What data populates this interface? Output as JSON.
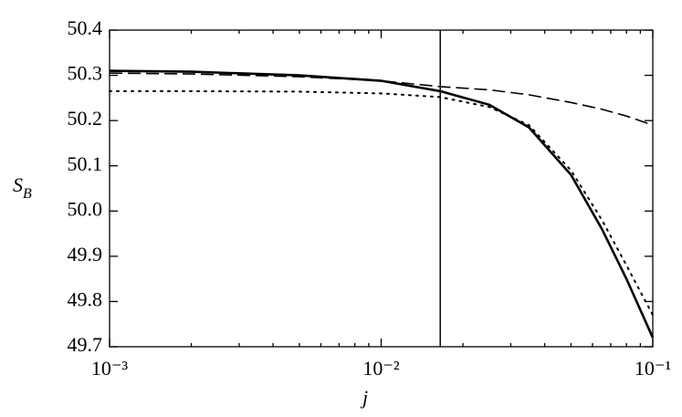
{
  "chart_data": {
    "type": "line",
    "xlabel": "j",
    "ylabel": "S",
    "ylabel_subscript": "B",
    "xscale": "log",
    "xlim": [
      0.001,
      0.1
    ],
    "xticks": [
      {
        "value": 0.001,
        "label": "10⁻³"
      },
      {
        "value": 0.01,
        "label": "10⁻²"
      },
      {
        "value": 0.1,
        "label": "10⁻¹"
      }
    ],
    "xminorticks": [
      0.002,
      0.003,
      0.004,
      0.005,
      0.006,
      0.007,
      0.008,
      0.009,
      0.02,
      0.03,
      0.04,
      0.05,
      0.06,
      0.07,
      0.08,
      0.09
    ],
    "ylim": [
      49.7,
      50.4
    ],
    "yticks": [
      49.7,
      49.8,
      49.9,
      {
        "value": 50,
        "label": "50.0"
      },
      50.1,
      50.2,
      50.3,
      50.4
    ],
    "vline": 0.0165,
    "x": [
      0.001,
      0.002,
      0.005,
      0.01,
      0.0165,
      0.025,
      0.035,
      0.05,
      0.065,
      0.08,
      0.1
    ],
    "series": [
      {
        "color": "#000000",
        "style": "solid",
        "values": [
          50.31,
          50.308,
          50.3,
          50.288,
          50.265,
          50.235,
          50.185,
          50.08,
          49.96,
          49.85,
          49.72
        ]
      },
      {
        "color": "#000000",
        "style": "dashed",
        "values": [
          50.305,
          50.303,
          50.297,
          50.288,
          50.275,
          50.268,
          50.257,
          50.24,
          50.225,
          50.21,
          50.19
        ]
      },
      {
        "color": "#000000",
        "style": "dotted",
        "values": [
          50.265,
          50.265,
          50.264,
          50.26,
          50.252,
          50.23,
          50.19,
          50.09,
          49.98,
          49.88,
          49.77
        ]
      }
    ]
  }
}
